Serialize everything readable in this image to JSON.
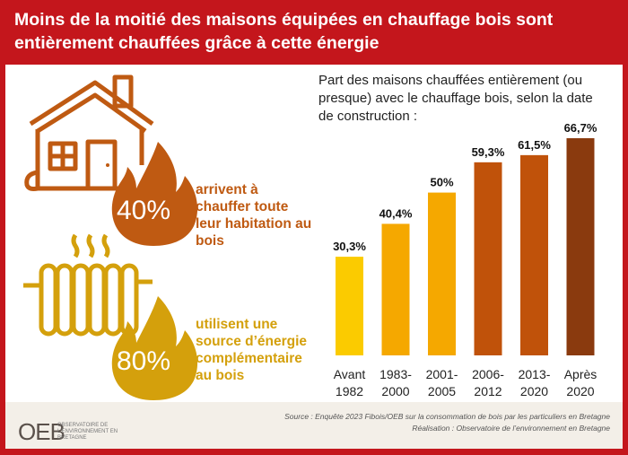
{
  "header": {
    "title": "Moins de la moitié des maisons équipées en chauffage bois sont entièrement chauffées grâce à cette énergie"
  },
  "stats": [
    {
      "value": "40%",
      "text": "arrivent à chauffer toute leur habitation au bois",
      "color": "#bf5a12",
      "icon": "house-icon"
    },
    {
      "value": "80%",
      "text": "utilisent une source d’énergie complémentaire au bois",
      "color": "#d4a00c",
      "icon": "radiator-icon"
    }
  ],
  "chart_data": {
    "type": "bar",
    "title": "Part des maisons chauffées entièrement (ou presque) avec le chauffage bois, selon la date de construction :",
    "categories": [
      [
        "Avant",
        "1982"
      ],
      [
        "1983-",
        "2000"
      ],
      [
        "2001-",
        "2005"
      ],
      [
        "2006-",
        "2012"
      ],
      [
        "2013-",
        "2020"
      ],
      [
        "Après",
        "2020"
      ]
    ],
    "values": [
      30.3,
      40.4,
      50,
      59.3,
      61.5,
      66.7
    ],
    "labels": [
      "30,3%",
      "40,4%",
      "50%",
      "59,3%",
      "61,5%",
      "66,7%"
    ],
    "colors": [
      "#fbcb00",
      "#f5a800",
      "#f5a800",
      "#c0520a",
      "#c0520a",
      "#8a3a0e"
    ],
    "ylim": [
      0,
      70
    ],
    "grid": false
  },
  "footer": {
    "source": "Source : Enquête 2023 Fibois/OEB sur la consommation de bois par les particuliers en Bretagne",
    "credit": "Réalisation : Observatoire de l’environnement en Bretagne",
    "logo": "OEB",
    "logo_text": "OBSERVATOIRE DE L'ENVIRONNEMENT EN BRETAGNE"
  }
}
